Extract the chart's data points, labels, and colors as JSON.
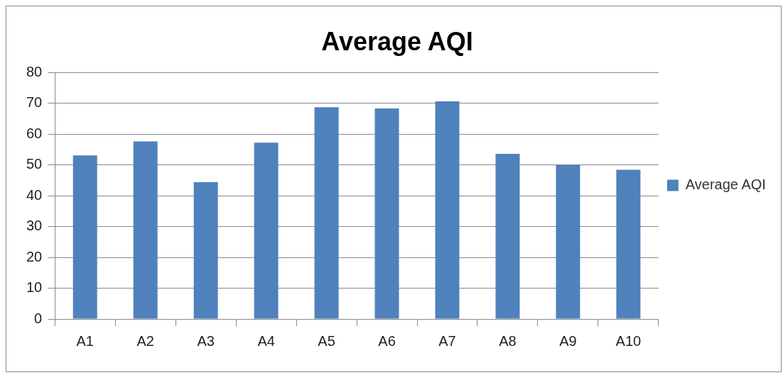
{
  "chart_data": {
    "type": "bar",
    "title": "Average AQI",
    "categories": [
      "A1",
      "A2",
      "A3",
      "A4",
      "A5",
      "A6",
      "A7",
      "A8",
      "A9",
      "A10"
    ],
    "series": [
      {
        "name": "Average AQI",
        "color": "#4f81bd",
        "values": [
          53.1,
          57.6,
          44.4,
          57.2,
          68.7,
          68.3,
          70.6,
          53.6,
          49.9,
          48.4
        ]
      }
    ],
    "ylim": [
      0,
      80
    ],
    "yticks": [
      0,
      10,
      20,
      30,
      40,
      50,
      60,
      70,
      80
    ],
    "grid": "y",
    "legend": "right"
  }
}
